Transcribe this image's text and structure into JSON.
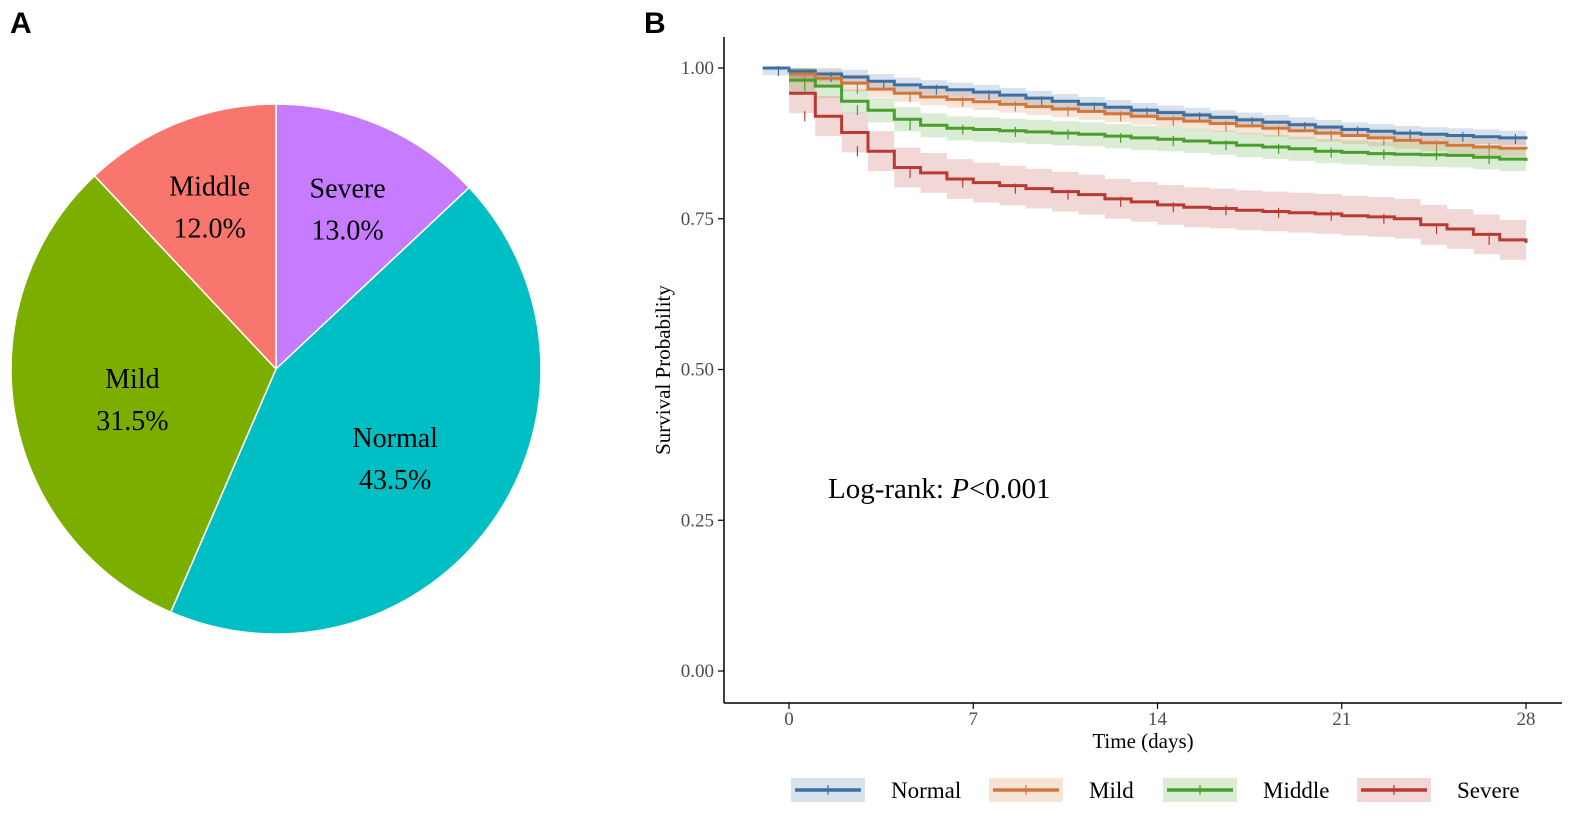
{
  "panels": {
    "a_label": "A",
    "b_label": "B"
  },
  "chart_data": [
    {
      "type": "pie",
      "panel": "A",
      "title": "",
      "slices": [
        {
          "label": "Severe",
          "pct_label": "13.0%",
          "value": 13.0,
          "color": "#C77CFF"
        },
        {
          "label": "Normal",
          "pct_label": "43.5%",
          "value": 43.5,
          "color": "#00BFC4"
        },
        {
          "label": "Mild",
          "pct_label": "31.5%",
          "value": 31.5,
          "color": "#7CAE00"
        },
        {
          "label": "Middle",
          "pct_label": "12.0%",
          "value": 12.0,
          "color": "#F8766D"
        }
      ]
    },
    {
      "type": "line",
      "subtype": "kaplan-meier step",
      "panel": "B",
      "xlabel": "Time (days)",
      "ylabel": "Survival Probability",
      "xlim": [
        -1,
        28
      ],
      "ylim": [
        0,
        1
      ],
      "xticks": [
        0,
        7,
        14,
        21,
        28
      ],
      "xtick_labels": [
        "0",
        "7",
        "14",
        "21",
        "28"
      ],
      "yticks": [
        0,
        0.25,
        0.5,
        0.75,
        1.0
      ],
      "ytick_labels": [
        "0.00",
        "0.25",
        "0.50",
        "0.75",
        "1.00"
      ],
      "annotation_prefix": "Log-rank: ",
      "annotation_p": "P",
      "annotation_value": "<0.001",
      "legend_position": "bottom",
      "series": [
        {
          "name": "Normal",
          "color": "#3C6FA3",
          "x": [
            -1,
            0,
            1,
            2,
            3,
            4,
            5,
            6,
            7,
            8,
            9,
            10,
            11,
            12,
            13,
            14,
            15,
            16,
            17,
            18,
            19,
            20,
            21,
            22,
            23,
            24,
            25,
            26,
            27,
            28
          ],
          "y": [
            1.0,
            0.995,
            0.99,
            0.985,
            0.978,
            0.972,
            0.968,
            0.964,
            0.96,
            0.955,
            0.95,
            0.945,
            0.94,
            0.935,
            0.93,
            0.926,
            0.922,
            0.918,
            0.914,
            0.91,
            0.906,
            0.902,
            0.898,
            0.895,
            0.892,
            0.89,
            0.888,
            0.886,
            0.884,
            0.882
          ],
          "band": 0.012
        },
        {
          "name": "Mild",
          "color": "#D2773A",
          "x": [
            0,
            1,
            2,
            3,
            4,
            5,
            6,
            7,
            8,
            9,
            10,
            11,
            12,
            13,
            14,
            15,
            16,
            17,
            18,
            19,
            20,
            21,
            22,
            23,
            24,
            25,
            26,
            27,
            28
          ],
          "y": [
            0.99,
            0.983,
            0.975,
            0.965,
            0.958,
            0.952,
            0.948,
            0.944,
            0.94,
            0.936,
            0.932,
            0.928,
            0.924,
            0.92,
            0.916,
            0.912,
            0.908,
            0.904,
            0.9,
            0.896,
            0.892,
            0.888,
            0.884,
            0.88,
            0.876,
            0.872,
            0.869,
            0.867,
            0.865
          ],
          "band": 0.014
        },
        {
          "name": "Middle",
          "color": "#4A9E2B",
          "x": [
            0,
            1,
            2,
            3,
            4,
            5,
            6,
            7,
            8,
            9,
            10,
            11,
            12,
            13,
            14,
            15,
            16,
            17,
            18,
            19,
            20,
            21,
            22,
            23,
            24,
            25,
            26,
            27,
            28
          ],
          "y": [
            0.98,
            0.97,
            0.945,
            0.93,
            0.915,
            0.905,
            0.9,
            0.898,
            0.896,
            0.894,
            0.892,
            0.89,
            0.887,
            0.884,
            0.882,
            0.879,
            0.876,
            0.872,
            0.869,
            0.866,
            0.862,
            0.86,
            0.858,
            0.857,
            0.856,
            0.855,
            0.852,
            0.849,
            0.846
          ],
          "band": 0.02
        },
        {
          "name": "Severe",
          "color": "#B93A32",
          "x": [
            0,
            1,
            2,
            3,
            4,
            5,
            6,
            7,
            8,
            9,
            10,
            11,
            12,
            13,
            14,
            15,
            16,
            17,
            18,
            19,
            20,
            21,
            22,
            23,
            24,
            25,
            26,
            27,
            28
          ],
          "y": [
            0.958,
            0.92,
            0.893,
            0.862,
            0.835,
            0.826,
            0.816,
            0.81,
            0.805,
            0.8,
            0.795,
            0.79,
            0.783,
            0.778,
            0.773,
            0.769,
            0.767,
            0.764,
            0.762,
            0.76,
            0.758,
            0.755,
            0.753,
            0.75,
            0.74,
            0.733,
            0.724,
            0.715,
            0.71
          ],
          "band": 0.033
        }
      ]
    }
  ]
}
